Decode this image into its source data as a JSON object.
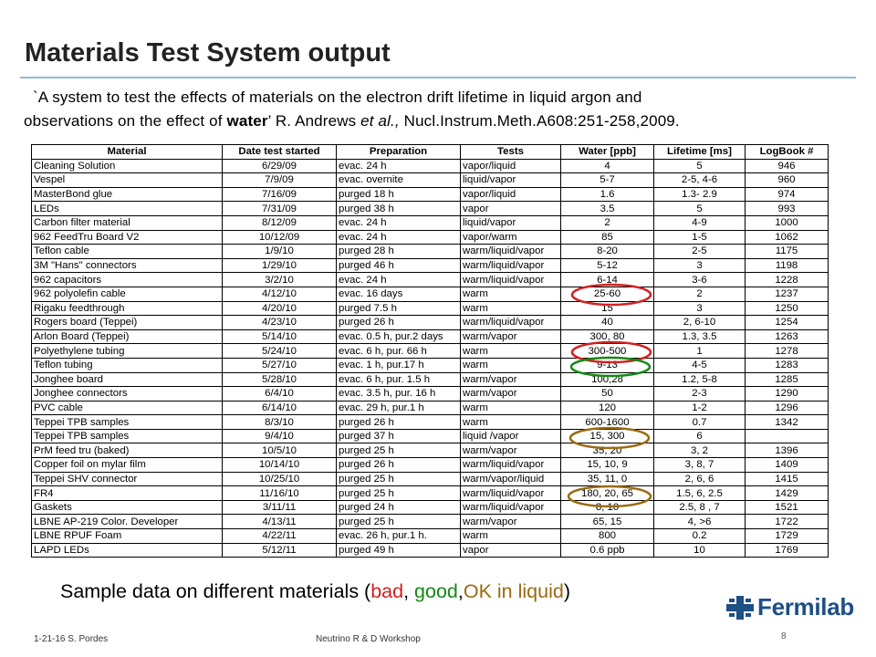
{
  "slide": {
    "title": "Materials Test System output",
    "citation_line1": "`A system to test the effects of materials on the electron drift lifetime in liquid argon and",
    "citation_line2_a": "observations on the effect of ",
    "citation_line2_bold": "water",
    "citation_line2_b": "’  R. Andrews ",
    "citation_line2_ital": "et al.,",
    "citation_line2_c": "  Nucl.Instrum.Meth.A608:251-258,2009.",
    "summary_prefix": "Sample data on different materials (",
    "summary_bad": "bad",
    "summary_sep1": ", ",
    "summary_good": "good",
    "summary_sep2": ",",
    "summary_ok": "OK in liquid",
    "summary_suffix": ")",
    "logo_text": "Fermilab",
    "footer_left": "1-21-16 S. Pordes",
    "footer_mid": "Neutrino R & D Workshop",
    "page_number": "8"
  },
  "colors": {
    "bad": "#d42020",
    "good": "#138a13",
    "ok": "#9a6a10",
    "brand": "#1e4f85",
    "rule": "#8fbcd6"
  },
  "table": {
    "headers": [
      "Material",
      "Date test started",
      "Preparation",
      "Tests",
      "Water [ppb]",
      "Lifetime [ms]",
      "LogBook #"
    ],
    "rows": [
      [
        "Cleaning Solution",
        "6/29/09",
        "evac. 24 h",
        "vapor/liquid",
        "4",
        "5",
        "946"
      ],
      [
        "Vespel",
        "7/9/09",
        "evac. overnite",
        "liquid/vapor",
        "5-7",
        "2-5, 4-6",
        "960"
      ],
      [
        "MasterBond glue",
        "7/16/09",
        "purged 18 h",
        "vapor/liquid",
        "1.6",
        "1.3- 2.9",
        "974"
      ],
      [
        "LEDs",
        "7/31/09",
        "purged 38 h",
        "vapor",
        "3.5",
        "5",
        "993"
      ],
      [
        "Carbon filter material",
        "8/12/09",
        "evac. 24 h",
        "liquid/vapor",
        "2",
        "4-9",
        "1000"
      ],
      [
        "962 FeedTru Board V2",
        "10/12/09",
        "evac. 24 h",
        "vapor/warm",
        "85",
        "1-5",
        "1062"
      ],
      [
        "Teflon cable",
        "1/9/10",
        "purged 28 h",
        "warm/liquid/vapor",
        "8-20",
        "2-5",
        "1175"
      ],
      [
        "3M \"Hans\" connectors",
        "1/29/10",
        "purged 46 h",
        "warm/liquid/vapor",
        "5-12",
        "3",
        "1198"
      ],
      [
        "962 capacitors",
        "3/2/10",
        "evac. 24 h",
        "warm/liquid/vapor",
        "6-14",
        "3-6",
        "1228"
      ],
      [
        "962 polyolefin cable",
        "4/12/10",
        "evac. 16 days",
        "warm",
        "25-60",
        "2",
        "1237"
      ],
      [
        "Rigaku feedthrough",
        "4/20/10",
        "purged 7.5 h",
        "warm",
        "15",
        "3",
        "1250"
      ],
      [
        "Rogers board (Teppei)",
        "4/23/10",
        "purged 26 h",
        "warm/liquid/vapor",
        "40",
        "2, 6-10",
        "1254"
      ],
      [
        "Arlon Board (Teppei)",
        "5/14/10",
        "evac. 0.5 h, pur.2 days",
        "warm/vapor",
        "300, 80",
        "1.3,  3.5",
        "1263"
      ],
      [
        "Polyethylene tubing",
        "5/24/10",
        "evac. 6 h, pur. 66 h",
        "warm",
        "300-500",
        "1",
        "1278"
      ],
      [
        "Teflon tubing",
        "5/27/10",
        "evac. 1 h, pur.17 h",
        "warm",
        "9-13",
        "4-5",
        "1283"
      ],
      [
        "Jonghee board",
        "5/28/10",
        "evac. 6 h, pur. 1.5 h",
        "warm/vapor",
        "100,28",
        "1.2,  5-8",
        "1285"
      ],
      [
        "Jonghee connectors",
        "6/4/10",
        "evac. 3.5 h, pur. 16 h",
        "warm/vapor",
        "50",
        "2-3",
        "1290"
      ],
      [
        "PVC cable",
        "6/14/10",
        "evac. 29 h, pur.1 h",
        "warm",
        "120",
        "1-2",
        "1296"
      ],
      [
        "Teppei TPB samples",
        "8/3/10",
        "purged 26 h",
        "warm",
        "600-1600",
        "0.7",
        "1342"
      ],
      [
        "Teppei TPB samples",
        "9/4/10",
        "purged 37 h",
        "liquid /vapor",
        "15,  300",
        "6",
        ""
      ],
      [
        "PrM feed tru (baked)",
        "10/5/10",
        "purged 25 h",
        "warm/vapor",
        "35,  20",
        "3,  2",
        "1396"
      ],
      [
        "Copper foil on mylar film",
        "10/14/10",
        "purged 26 h",
        "warm/liquid/vapor",
        "15, 10, 9",
        "3, 8, 7",
        "1409"
      ],
      [
        "Teppei SHV connector",
        "10/25/10",
        "purged 25 h",
        "warm/vapor/liquid",
        "35, 11, 0",
        "2, 6, 6",
        "1415"
      ],
      [
        "FR4",
        "11/16/10",
        "purged 25 h",
        "warm/liquid/vapor",
        "180, 20, 65",
        "1.5, 6, 2.5",
        "1429"
      ],
      [
        "Gaskets",
        "3/11/11",
        "purged 24 h",
        "warm/liquid/vapor",
        "8, 10",
        "2.5, 8 , 7",
        "1521"
      ],
      [
        "LBNE AP-219 Color. Developer",
        "4/13/11",
        "purged 25 h",
        "warm/vapor",
        "65, 15",
        "4, >6",
        "1722"
      ],
      [
        "LBNE RPUF Foam",
        "4/22/11",
        "evac. 26 h, pur.1 h.",
        "warm",
        "800",
        "0.2",
        "1729"
      ],
      [
        "LAPD LEDs",
        "5/12/11",
        "purged 49 h",
        "vapor",
        "0.6 ppb",
        "10",
        "1769"
      ]
    ]
  }
}
